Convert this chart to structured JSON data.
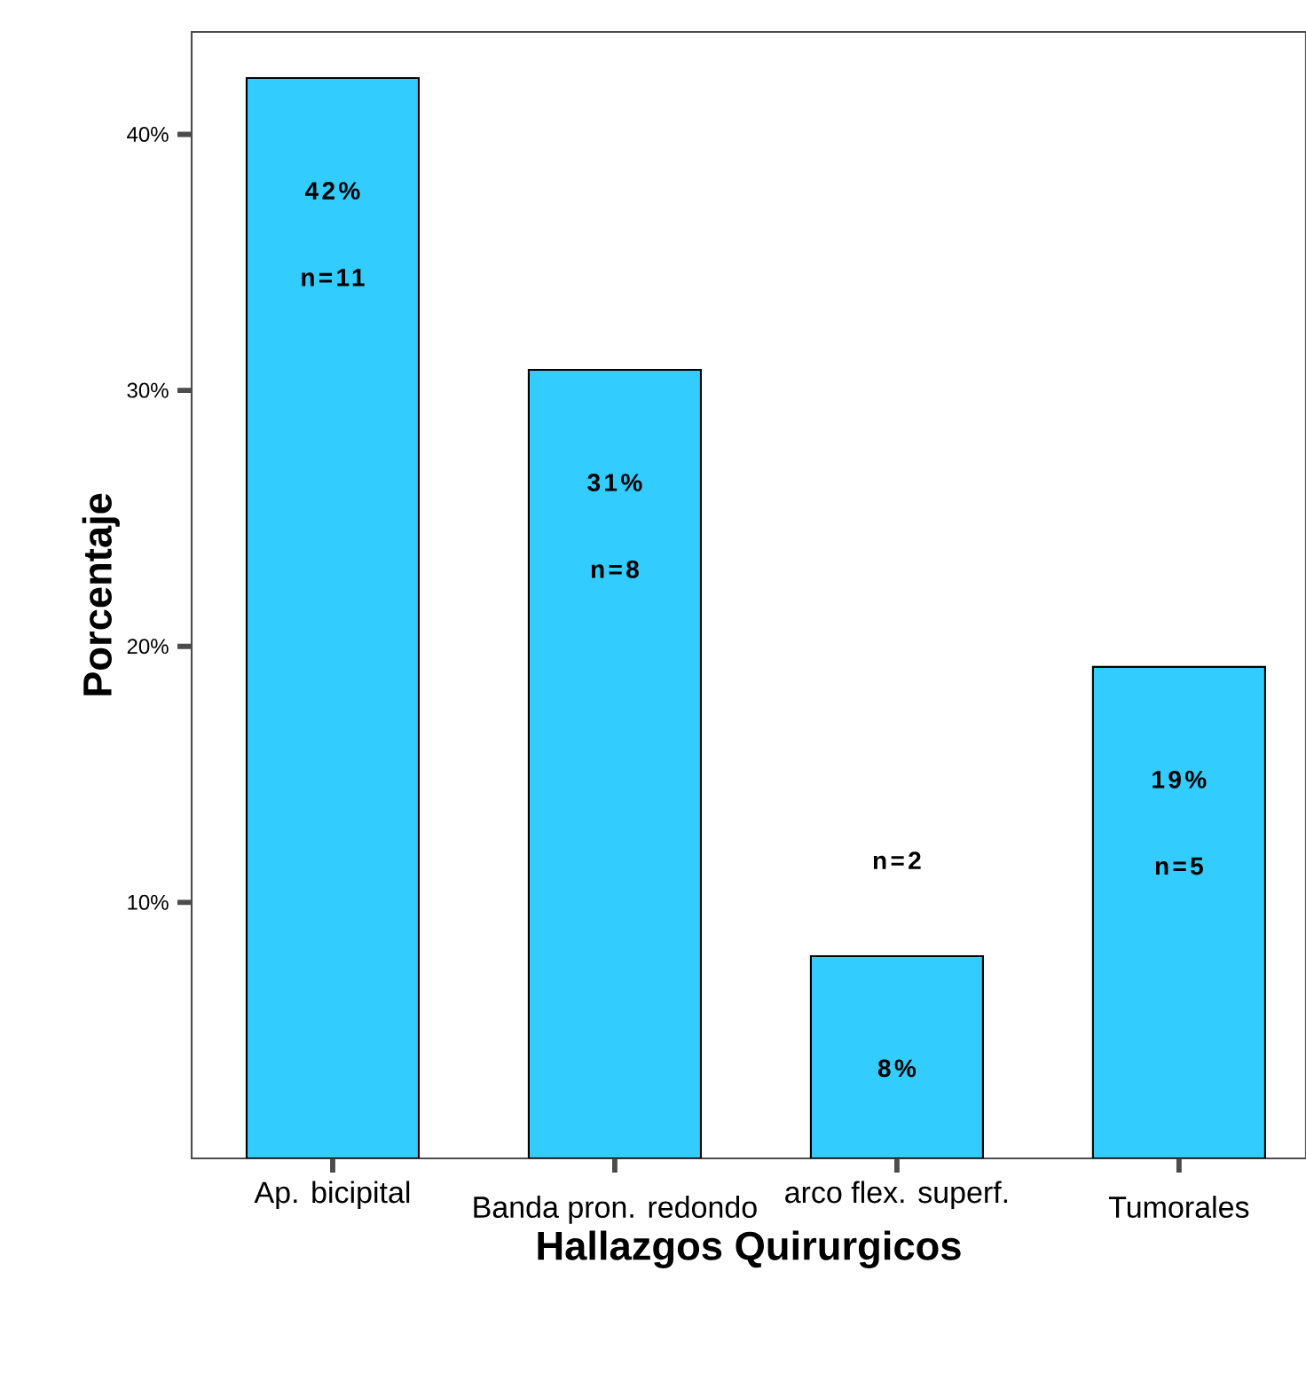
{
  "chart_data": {
    "type": "bar",
    "xlabel": "Hallazgos Quirurgicos",
    "ylabel": "Porcentaje",
    "categories": [
      "Ap. bicipital",
      "Banda pron. redondo",
      "arco  flex. superf.",
      "Tumorales"
    ],
    "values": [
      42.2,
      30.8,
      7.9,
      19.2
    ],
    "value_labels": [
      "42%",
      "31%",
      "8%",
      "19%"
    ],
    "color": "#33ccff",
    "ylim": [
      0,
      44
    ],
    "yticks": [
      {
        "value": 10,
        "label": "10%"
      },
      {
        "value": 20,
        "label": "20%"
      },
      {
        "value": 30,
        "label": "30%"
      },
      {
        "value": 40,
        "label": "40%"
      }
    ],
    "grid": false,
    "annotations": [
      "n=11",
      "n=8",
      "n=2",
      "n=5"
    ]
  }
}
